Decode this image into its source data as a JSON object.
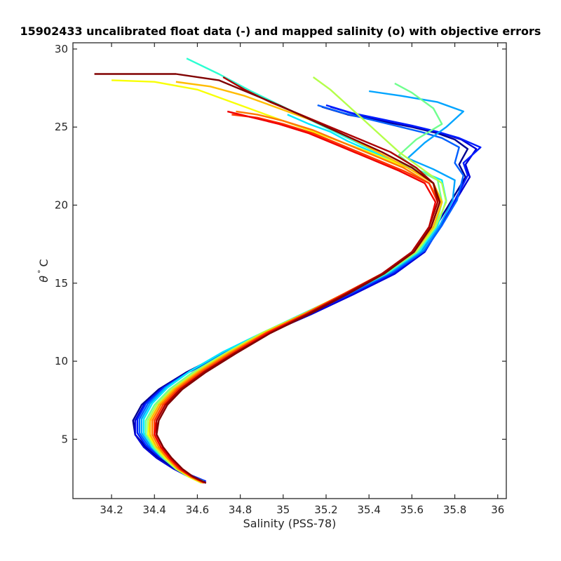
{
  "chart_data": {
    "type": "line",
    "title": "15902433 uncalibrated float data (-) and mapped salinity (o) with objective errors",
    "xlabel": "Salinity (PSS-78)",
    "ylabel_symbol": "θ",
    "ylabel_degree": "°",
    "ylabel_unit": "C",
    "xlim": [
      34.02,
      36.04
    ],
    "ylim": [
      1.2,
      30.4
    ],
    "xticks": [
      34.2,
      34.4,
      34.6,
      34.8,
      35.0,
      35.2,
      35.4,
      35.6,
      35.8,
      36.0
    ],
    "xtick_labels": [
      "34.2",
      "34.4",
      "34.6",
      "34.8",
      "35",
      "35.2",
      "35.4",
      "35.6",
      "35.8",
      "36"
    ],
    "yticks": [
      5,
      10,
      15,
      20,
      25,
      30
    ],
    "ytick_labels": [
      "5",
      "10",
      "15",
      "20",
      "25",
      "30"
    ],
    "grid": false,
    "colormap": "jet",
    "series_note_count": 40,
    "series": [
      {
        "color": "#00008f",
        "x": [
          34.64,
          34.57,
          34.5,
          34.42,
          34.36,
          34.31,
          34.3,
          34.34,
          34.42,
          34.55,
          34.72,
          34.92,
          35.12,
          35.32,
          35.5,
          35.64,
          35.71,
          35.78,
          35.85,
          35.82,
          35.86,
          35.8,
          35.72,
          35.6,
          35.45,
          35.3,
          35.18
        ],
        "y": [
          2.2,
          2.6,
          3.1,
          3.8,
          4.5,
          5.3,
          6.2,
          7.2,
          8.2,
          9.3,
          10.5,
          11.8,
          13.0,
          14.3,
          15.6,
          17.0,
          18.6,
          20.2,
          21.8,
          22.6,
          23.6,
          24.2,
          24.6,
          25.0,
          25.4,
          25.8,
          26.3
        ]
      },
      {
        "color": "#0000d6",
        "x": [
          34.64,
          34.56,
          34.49,
          34.41,
          34.35,
          34.31,
          34.31,
          34.35,
          34.43,
          34.56,
          34.73,
          34.93,
          35.13,
          35.33,
          35.52,
          35.66,
          35.73,
          35.8,
          35.87,
          35.85,
          35.9,
          35.83,
          35.74,
          35.62,
          35.48,
          35.34,
          35.22
        ],
        "y": [
          2.2,
          2.6,
          3.1,
          3.8,
          4.5,
          5.3,
          6.2,
          7.2,
          8.2,
          9.3,
          10.5,
          11.8,
          13.0,
          14.3,
          15.6,
          17.0,
          18.6,
          20.2,
          21.8,
          22.6,
          23.6,
          24.2,
          24.6,
          25.0,
          25.4,
          25.8,
          26.3
        ]
      },
      {
        "color": "#001cff",
        "x": [
          34.64,
          34.57,
          34.5,
          34.42,
          34.36,
          34.32,
          34.32,
          34.36,
          34.44,
          34.57,
          34.73,
          34.93,
          35.13,
          35.33,
          35.52,
          35.66,
          35.74,
          35.8,
          35.86,
          35.84,
          35.92,
          35.82,
          35.72,
          35.6,
          35.46,
          35.32,
          35.2
        ],
        "y": [
          2.3,
          2.7,
          3.2,
          3.9,
          4.6,
          5.4,
          6.3,
          7.3,
          8.3,
          9.4,
          10.6,
          11.8,
          13.1,
          14.4,
          15.7,
          17.1,
          18.7,
          20.3,
          21.9,
          22.7,
          23.7,
          24.3,
          24.7,
          25.1,
          25.5,
          25.9,
          26.4
        ]
      },
      {
        "color": "#0060ff",
        "x": [
          34.63,
          34.56,
          34.5,
          34.43,
          34.37,
          34.33,
          34.33,
          34.37,
          34.45,
          34.57,
          34.73,
          34.92,
          35.12,
          35.32,
          35.51,
          35.66,
          35.74,
          35.81,
          35.84,
          35.8,
          35.82,
          35.74,
          35.64,
          35.52,
          35.4,
          35.28,
          35.16
        ],
        "y": [
          2.3,
          2.7,
          3.2,
          3.9,
          4.6,
          5.4,
          6.3,
          7.3,
          8.3,
          9.4,
          10.6,
          11.8,
          13.1,
          14.4,
          15.7,
          17.1,
          18.7,
          20.3,
          21.9,
          22.7,
          23.7,
          24.3,
          24.7,
          25.1,
          25.5,
          25.9,
          26.4
        ]
      },
      {
        "color": "#00a4ff",
        "x": [
          34.63,
          34.56,
          34.5,
          34.43,
          34.38,
          34.34,
          34.34,
          34.38,
          34.45,
          34.57,
          34.72,
          34.91,
          35.11,
          35.31,
          35.5,
          35.65,
          35.73,
          35.79,
          35.8,
          35.7,
          35.58,
          35.66,
          35.76,
          35.84,
          35.72,
          35.55,
          35.4
        ],
        "y": [
          2.3,
          2.7,
          3.2,
          3.9,
          4.6,
          5.4,
          6.3,
          7.3,
          8.3,
          9.4,
          10.6,
          11.8,
          13.1,
          14.4,
          15.7,
          17.1,
          18.7,
          20.3,
          21.6,
          22.3,
          23.0,
          24.0,
          25.0,
          26.0,
          26.6,
          27.0,
          27.3
        ]
      },
      {
        "color": "#00e8ff",
        "x": [
          34.63,
          34.56,
          34.5,
          34.44,
          34.39,
          34.35,
          34.35,
          34.39,
          34.46,
          34.57,
          34.72,
          34.9,
          35.1,
          35.3,
          35.49,
          35.64,
          35.72,
          35.76,
          35.74,
          35.62,
          35.5,
          35.4,
          35.3,
          35.22,
          35.12,
          35.02
        ],
        "y": [
          2.3,
          2.7,
          3.2,
          3.9,
          4.6,
          5.4,
          6.3,
          7.3,
          8.3,
          9.4,
          10.6,
          11.8,
          13.1,
          14.4,
          15.7,
          17.1,
          18.7,
          20.3,
          21.6,
          22.3,
          22.9,
          23.5,
          24.1,
          24.7,
          25.2,
          25.8
        ]
      },
      {
        "color": "#2cffd2",
        "x": [
          34.62,
          34.56,
          34.5,
          34.44,
          34.39,
          34.36,
          34.36,
          34.4,
          34.47,
          34.58,
          34.73,
          34.9,
          35.09,
          35.29,
          35.48,
          35.63,
          35.71,
          35.74,
          35.7,
          35.58,
          35.45,
          35.3,
          35.15,
          35.0,
          34.85,
          34.7,
          34.55
        ],
        "y": [
          2.2,
          2.6,
          3.1,
          3.8,
          4.5,
          5.3,
          6.2,
          7.2,
          8.2,
          9.3,
          10.5,
          11.8,
          13.0,
          14.3,
          15.6,
          17.0,
          18.6,
          20.2,
          21.4,
          22.4,
          23.3,
          24.3,
          25.3,
          26.3,
          27.3,
          28.4,
          29.4
        ]
      },
      {
        "color": "#70ff8e",
        "x": [
          34.62,
          34.56,
          34.5,
          34.44,
          34.4,
          34.36,
          34.36,
          34.4,
          34.47,
          34.58,
          34.73,
          34.9,
          35.09,
          35.29,
          35.47,
          35.62,
          35.71,
          35.74,
          35.72,
          35.62,
          35.54,
          35.62,
          35.74,
          35.7,
          35.6,
          35.52
        ],
        "y": [
          2.2,
          2.6,
          3.1,
          3.8,
          4.5,
          5.3,
          6.2,
          7.2,
          8.2,
          9.3,
          10.5,
          11.8,
          13.0,
          14.3,
          15.6,
          17.0,
          18.6,
          20.2,
          21.6,
          22.3,
          23.2,
          24.2,
          25.2,
          26.2,
          27.2,
          27.8
        ]
      },
      {
        "color": "#b4ff4a",
        "x": [
          34.62,
          34.56,
          34.5,
          34.45,
          34.4,
          34.37,
          34.37,
          34.41,
          34.48,
          34.59,
          34.73,
          34.9,
          35.09,
          35.29,
          35.47,
          35.62,
          35.71,
          35.76,
          35.74,
          35.64,
          35.54,
          35.46,
          35.38,
          35.3,
          35.22,
          35.14
        ],
        "y": [
          2.2,
          2.6,
          3.1,
          3.8,
          4.5,
          5.3,
          6.2,
          7.2,
          8.2,
          9.3,
          10.5,
          11.8,
          13.0,
          14.3,
          15.6,
          17.0,
          18.6,
          20.2,
          21.4,
          22.4,
          23.4,
          24.4,
          25.4,
          26.4,
          27.4,
          28.2
        ]
      },
      {
        "color": "#f8ff06",
        "x": [
          34.62,
          34.56,
          34.51,
          34.45,
          34.41,
          34.37,
          34.38,
          34.42,
          34.49,
          34.6,
          34.74,
          34.91,
          35.09,
          35.28,
          35.46,
          35.61,
          35.7,
          35.74,
          35.7,
          35.58,
          35.4,
          35.2,
          35.0,
          34.8,
          34.6,
          34.4,
          34.2
        ],
        "y": [
          2.2,
          2.6,
          3.1,
          3.8,
          4.5,
          5.3,
          6.2,
          7.2,
          8.2,
          9.3,
          10.5,
          11.8,
          13.0,
          14.3,
          15.6,
          17.0,
          18.6,
          20.2,
          21.4,
          22.4,
          23.4,
          24.4,
          25.4,
          26.4,
          27.4,
          27.9,
          28.0
        ]
      },
      {
        "color": "#ffbc00",
        "x": [
          34.63,
          34.57,
          34.51,
          34.46,
          34.41,
          34.38,
          34.38,
          34.42,
          34.49,
          34.6,
          34.74,
          34.91,
          35.09,
          35.28,
          35.46,
          35.61,
          35.7,
          35.74,
          35.7,
          35.58,
          35.44,
          35.3,
          35.14,
          34.98,
          34.82,
          34.66,
          34.5
        ],
        "y": [
          2.2,
          2.6,
          3.1,
          3.8,
          4.5,
          5.3,
          6.2,
          7.2,
          8.2,
          9.3,
          10.5,
          11.8,
          13.0,
          14.3,
          15.6,
          17.0,
          18.6,
          20.2,
          21.4,
          22.4,
          23.4,
          24.4,
          25.4,
          26.2,
          27.0,
          27.6,
          27.9
        ]
      },
      {
        "color": "#ff7800",
        "x": [
          34.63,
          34.57,
          34.51,
          34.46,
          34.42,
          34.39,
          34.39,
          34.43,
          34.5,
          34.61,
          34.75,
          34.92,
          35.1,
          35.28,
          35.46,
          35.61,
          35.69,
          35.73,
          35.68,
          35.56,
          35.42,
          35.28,
          35.14,
          35.0,
          34.88,
          34.78
        ],
        "y": [
          2.2,
          2.6,
          3.1,
          3.8,
          4.5,
          5.3,
          6.2,
          7.2,
          8.2,
          9.3,
          10.5,
          11.8,
          13.0,
          14.3,
          15.6,
          17.0,
          18.6,
          20.2,
          21.4,
          22.4,
          23.2,
          24.0,
          24.8,
          25.4,
          25.8,
          26.0
        ]
      },
      {
        "color": "#ff3400",
        "x": [
          34.63,
          34.57,
          34.52,
          34.47,
          34.43,
          34.4,
          34.4,
          34.44,
          34.51,
          34.62,
          34.76,
          34.92,
          35.1,
          35.28,
          35.46,
          35.6,
          35.68,
          35.72,
          35.68,
          35.56,
          35.42,
          35.28,
          35.14,
          35.0,
          34.88,
          34.76
        ],
        "y": [
          2.2,
          2.6,
          3.1,
          3.8,
          4.5,
          5.3,
          6.2,
          7.2,
          8.2,
          9.3,
          10.5,
          11.8,
          13.0,
          14.3,
          15.6,
          17.0,
          18.6,
          20.2,
          21.4,
          22.2,
          23.0,
          23.8,
          24.6,
          25.2,
          25.6,
          25.8
        ]
      },
      {
        "color": "#f00000",
        "x": [
          34.64,
          34.58,
          34.52,
          34.47,
          34.43,
          34.4,
          34.41,
          34.45,
          34.52,
          34.63,
          34.77,
          34.93,
          35.11,
          35.29,
          35.46,
          35.6,
          35.68,
          35.71,
          35.66,
          35.54,
          35.4,
          35.26,
          35.12,
          34.98,
          34.86,
          34.74
        ],
        "y": [
          2.2,
          2.6,
          3.1,
          3.8,
          4.5,
          5.3,
          6.2,
          7.2,
          8.2,
          9.3,
          10.5,
          11.8,
          13.0,
          14.3,
          15.6,
          17.0,
          18.6,
          20.2,
          21.4,
          22.2,
          23.0,
          23.8,
          24.6,
          25.2,
          25.6,
          26.0
        ]
      },
      {
        "color": "#ac0000",
        "x": [
          34.64,
          34.58,
          34.53,
          34.48,
          34.44,
          34.41,
          34.41,
          34.45,
          34.52,
          34.63,
          34.77,
          34.94,
          35.11,
          35.29,
          35.46,
          35.6,
          35.68,
          35.72,
          35.7,
          35.62,
          35.5,
          35.36,
          35.22,
          35.08,
          34.94,
          34.82,
          34.72
        ],
        "y": [
          2.2,
          2.6,
          3.1,
          3.8,
          4.5,
          5.3,
          6.2,
          7.2,
          8.2,
          9.3,
          10.5,
          11.8,
          13.0,
          14.3,
          15.6,
          17.0,
          18.6,
          20.2,
          21.4,
          22.4,
          23.4,
          24.2,
          25.0,
          25.8,
          26.6,
          27.4,
          28.2
        ]
      },
      {
        "color": "#800000",
        "x": [
          34.64,
          34.58,
          34.53,
          34.48,
          34.44,
          34.41,
          34.42,
          34.46,
          34.53,
          34.64,
          34.78,
          34.94,
          35.12,
          35.3,
          35.47,
          35.61,
          35.69,
          35.73,
          35.7,
          35.6,
          35.46,
          35.3,
          35.14,
          34.98,
          34.84,
          34.7,
          34.5,
          34.3,
          34.12
        ],
        "y": [
          2.2,
          2.6,
          3.1,
          3.8,
          4.5,
          5.3,
          6.2,
          7.2,
          8.2,
          9.3,
          10.5,
          11.8,
          13.0,
          14.3,
          15.6,
          17.0,
          18.6,
          20.2,
          21.4,
          22.4,
          23.4,
          24.4,
          25.4,
          26.4,
          27.2,
          28.0,
          28.4,
          28.4,
          28.4
        ]
      }
    ]
  }
}
